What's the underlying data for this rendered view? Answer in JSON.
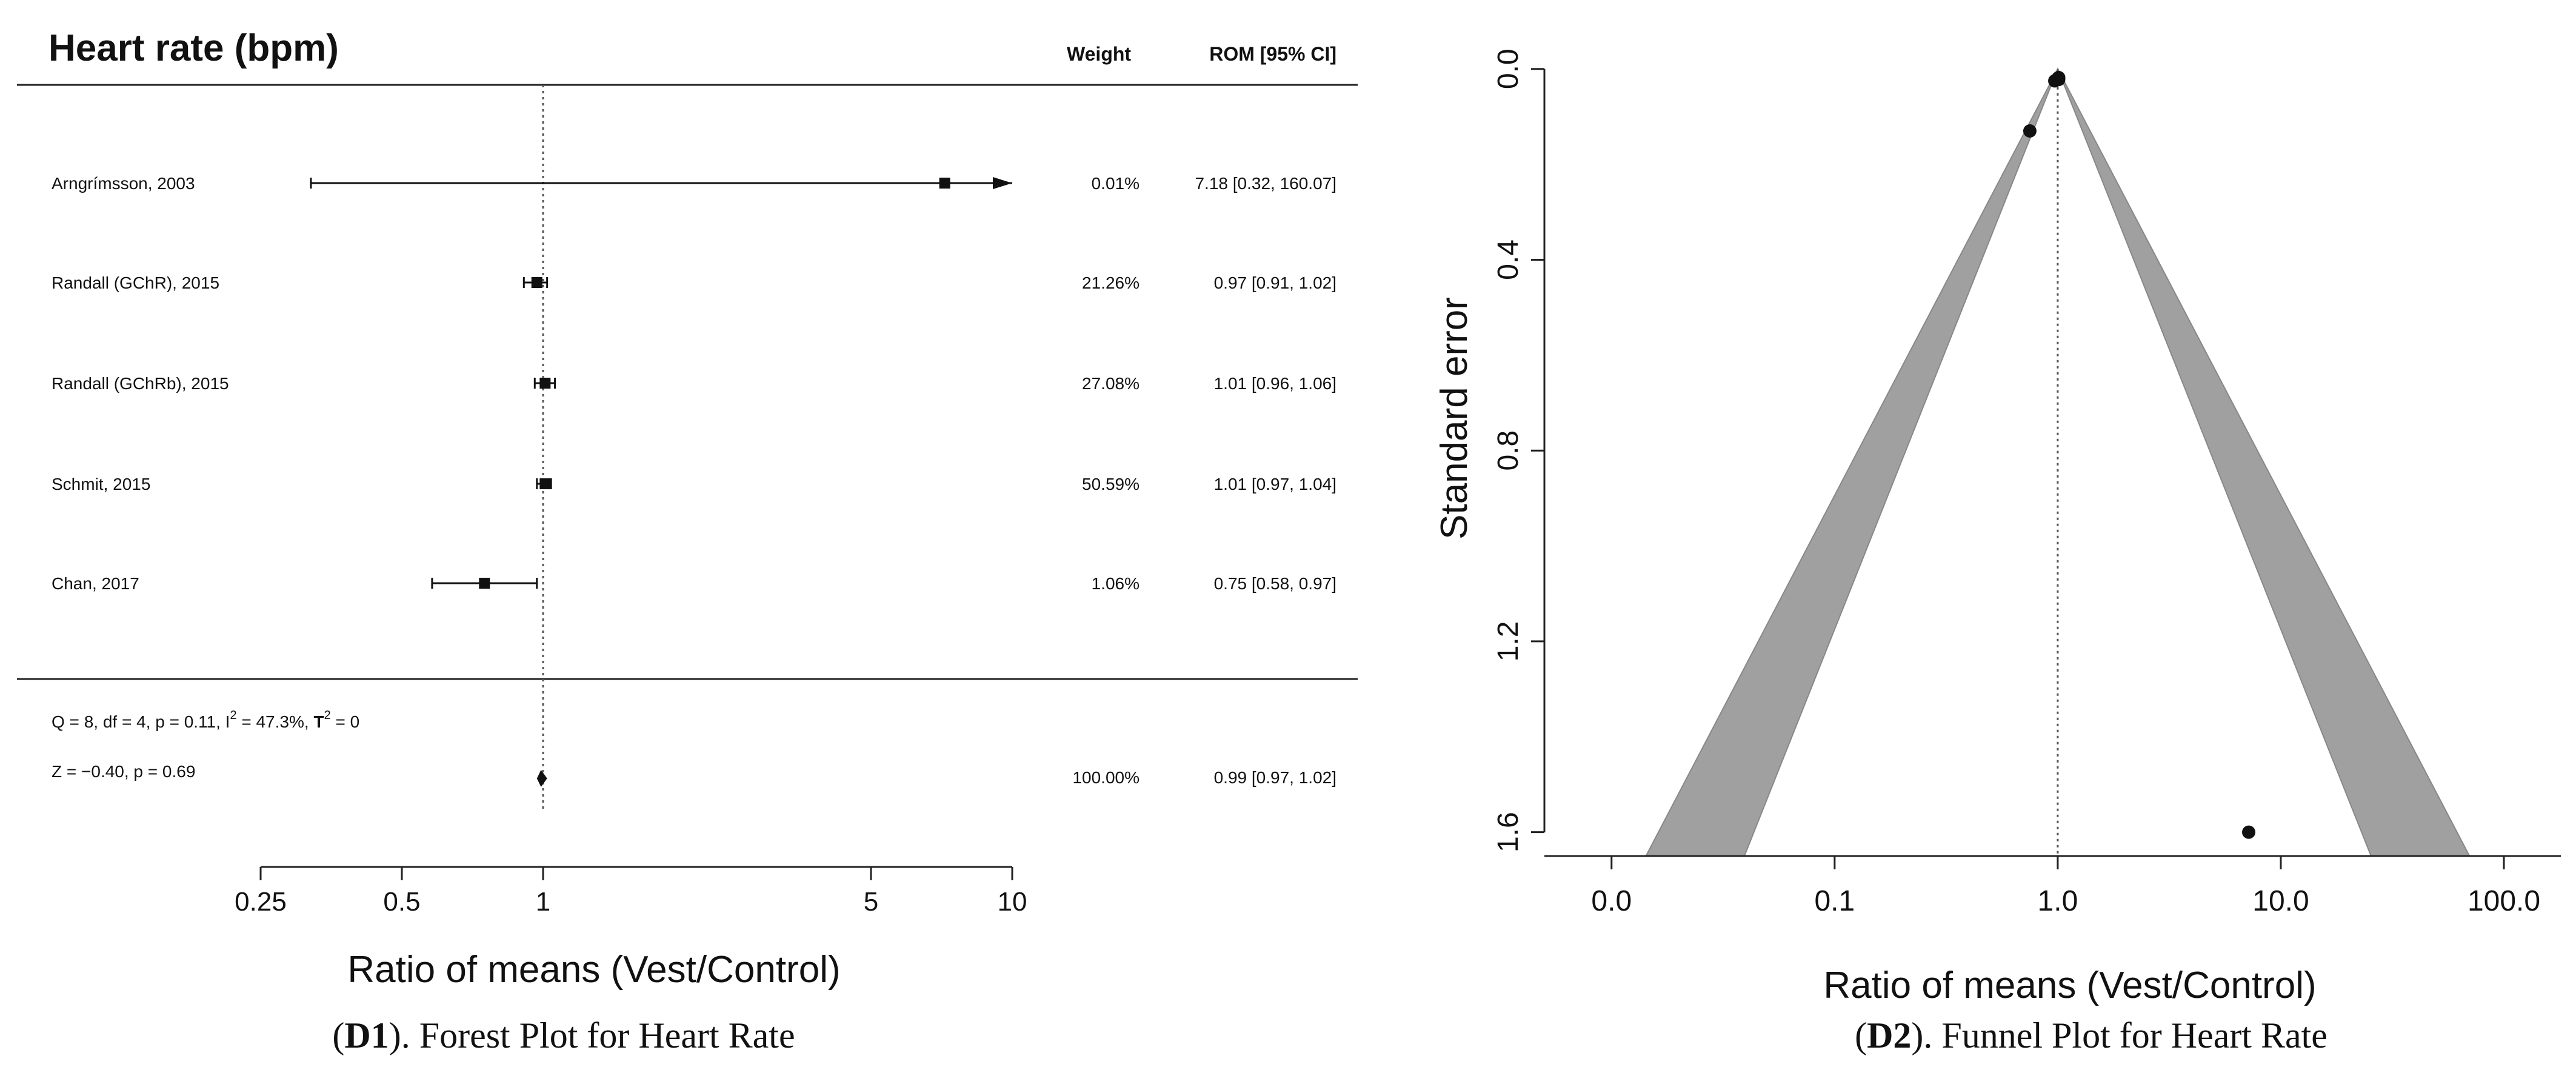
{
  "chart_data": [
    {
      "type": "forest",
      "title": "Heart rate (bpm)",
      "column_headers": {
        "weight": "Weight",
        "rom": "ROM [95% CI]"
      },
      "studies": [
        {
          "label": "Arngrímsson, 2003",
          "estimate": 7.18,
          "ci_lower": 0.32,
          "ci_upper": 160.07,
          "weight_text": "0.01%",
          "rom_text": "7.18 [0.32, 160.07]",
          "ci_truncated_right": true
        },
        {
          "label": "Randall (GChR), 2015",
          "estimate": 0.97,
          "ci_lower": 0.91,
          "ci_upper": 1.02,
          "weight_text": "21.26%",
          "rom_text": "0.97 [0.91,   1.02]"
        },
        {
          "label": "Randall (GChRb), 2015",
          "estimate": 1.01,
          "ci_lower": 0.96,
          "ci_upper": 1.06,
          "weight_text": "27.08%",
          "rom_text": "1.01 [0.96,   1.06]"
        },
        {
          "label": "Schmit, 2015",
          "estimate": 1.01,
          "ci_lower": 0.97,
          "ci_upper": 1.04,
          "weight_text": "50.59%",
          "rom_text": "1.01 [0.97,   1.04]"
        },
        {
          "label": "Chan, 2017",
          "estimate": 0.75,
          "ci_lower": 0.58,
          "ci_upper": 0.97,
          "weight_text": "1.06%",
          "rom_text": "0.75 [0.58,   0.97]"
        }
      ],
      "heterogeneity": {
        "prefix": "Q = 8, df = 4, p = 0.11, I",
        "i2_sup": "2",
        "i2_value": " = 47.3%, ",
        "tau": "T",
        "tau_sup": "2",
        "tau_value": " =   0"
      },
      "overall": {
        "label": "Z = −0.40, p = 0.69",
        "estimate": 0.99,
        "ci_lower": 0.97,
        "ci_upper": 1.02,
        "weight_text": "100.00%",
        "rom_text": "0.99 [0.97,   1.02]"
      },
      "x_scale": "log",
      "x_ticks": [
        0.25,
        0.5,
        1,
        5,
        10
      ],
      "x_tick_labels": [
        "0.25",
        "0.5",
        "1",
        "5",
        "10"
      ],
      "xlim": [
        0.25,
        10
      ],
      "reference_line": 1,
      "xlabel": "Ratio of means (Vest/Control)",
      "caption": {
        "open": "(",
        "bold": "D1",
        "rest": "). Forest Plot for Heart Rate"
      }
    },
    {
      "type": "funnel",
      "points": [
        {
          "x": 1.0,
          "se": 0.02
        },
        {
          "x": 0.97,
          "se": 0.025
        },
        {
          "x": 1.01,
          "se": 0.022
        },
        {
          "x": 1.01,
          "se": 0.018
        },
        {
          "x": 0.75,
          "se": 0.13
        },
        {
          "x": 7.18,
          "se": 1.6
        }
      ],
      "center": 1.0,
      "x_scale": "log",
      "x_ticks": [
        0.01,
        0.1,
        1,
        10,
        100
      ],
      "x_tick_labels": [
        "0.0",
        "0.1",
        "1.0",
        "10.0",
        "100.0"
      ],
      "xlim": [
        0.005,
        180
      ],
      "y_ticks": [
        0.0,
        0.4,
        0.8,
        1.2,
        1.6
      ],
      "y_tick_labels": [
        "0.0",
        "0.4",
        "0.8",
        "1.2",
        "1.6"
      ],
      "ylim": [
        1.65,
        -0.02
      ],
      "funnel_se_max": 1.65,
      "funnel_z_inner": 1.96,
      "funnel_z_outer": 2.576,
      "xlabel": "Ratio of means (Vest/Control)",
      "ylabel": "Standard error",
      "caption": {
        "open": "(",
        "bold": "D2",
        "rest": "). Funnel Plot for Heart Rate"
      }
    }
  ]
}
